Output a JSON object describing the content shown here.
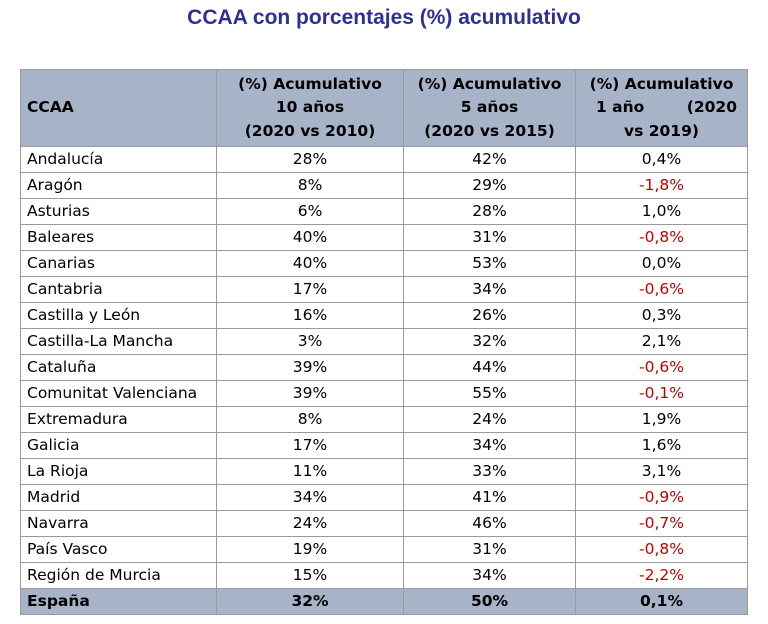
{
  "title": "CCAA con porcentajes (%) acumulativo",
  "table": {
    "headers": {
      "ccaa": "CCAA",
      "col10": {
        "l1": "(%) Acumulativo",
        "l2": "10 años",
        "l3": "(2020 vs 2010)"
      },
      "col5": {
        "l1": "(%) Acumulativo",
        "l2": "5 años",
        "l3": "(2020 vs 2015)"
      },
      "col1": {
        "l1": "(%) Acumulativo",
        "l2a": "1 año",
        "l2b": "(2020",
        "l3": "vs 2019)"
      }
    },
    "rows": [
      {
        "name": "Andalucía",
        "v10": "28%",
        "v5": "42%",
        "v1": "0,4%"
      },
      {
        "name": "Aragón",
        "v10": "8%",
        "v5": "29%",
        "v1": "-1,8%"
      },
      {
        "name": "Asturias",
        "v10": "6%",
        "v5": "28%",
        "v1": "1,0%"
      },
      {
        "name": "Baleares",
        "v10": "40%",
        "v5": "31%",
        "v1": "-0,8%"
      },
      {
        "name": "Canarias",
        "v10": "40%",
        "v5": "53%",
        "v1": "0,0%"
      },
      {
        "name": "Cantabria",
        "v10": "17%",
        "v5": "34%",
        "v1": "-0,6%"
      },
      {
        "name": "Castilla y León",
        "v10": "16%",
        "v5": "26%",
        "v1": "0,3%"
      },
      {
        "name": "Castilla-La Mancha",
        "v10": "3%",
        "v5": "32%",
        "v1": "2,1%"
      },
      {
        "name": "Cataluña",
        "v10": "39%",
        "v5": "44%",
        "v1": "-0,6%"
      },
      {
        "name": "Comunitat Valenciana",
        "v10": "39%",
        "v5": "55%",
        "v1": "-0,1%"
      },
      {
        "name": "Extremadura",
        "v10": "8%",
        "v5": "24%",
        "v1": "1,9%"
      },
      {
        "name": "Galicia",
        "v10": "17%",
        "v5": "34%",
        "v1": "1,6%"
      },
      {
        "name": "La Rioja",
        "v10": "11%",
        "v5": "33%",
        "v1": "3,1%"
      },
      {
        "name": "Madrid",
        "v10": "34%",
        "v5": "41%",
        "v1": "-0,9%"
      },
      {
        "name": "Navarra",
        "v10": "24%",
        "v5": "46%",
        "v1": "-0,7%"
      },
      {
        "name": "País Vasco",
        "v10": "19%",
        "v5": "31%",
        "v1": "-0,8%"
      },
      {
        "name": "Región de Murcia",
        "v10": "15%",
        "v5": "34%",
        "v1": "-2,2%"
      }
    ],
    "total": {
      "name": "España",
      "v10": "32%",
      "v5": "50%",
      "v1": "0,1%"
    }
  },
  "colors": {
    "header_bg": "#a7b4c8",
    "title": "#2e3192",
    "negative": "#c00000",
    "border": "#9a9a9a"
  }
}
